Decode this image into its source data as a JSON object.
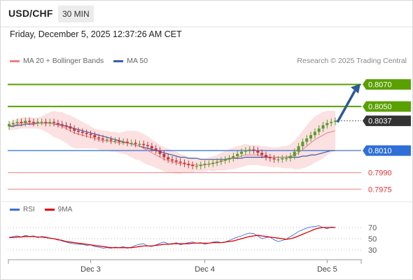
{
  "header": {
    "symbol": "USD/CHF",
    "interval": "30 MIN"
  },
  "datetime": "Friday, December 5, 2025 12:37:26 AM CET",
  "legend": {
    "ma20": {
      "label": "MA 20 + Bollinger Bands",
      "color": "#f08080"
    },
    "ma50": {
      "label": "MA 50",
      "color": "#3a5fa8"
    }
  },
  "credit": "Research © 2025 Trading Central",
  "colors": {
    "resistance": "#5aa000",
    "pivot": "#2f6fd6",
    "support": "#f08080",
    "support_text": "#e03030",
    "current_bg": "#333333",
    "candle_up": "#5a9a2a",
    "candle_down": "#c8323a",
    "band_fill": "#f8c8c8",
    "arrow": "#2d5b95",
    "rsi": "#3a6fd8",
    "rsi_ma": "#e00000"
  },
  "chart_data": {
    "type": "candlestick",
    "price_range": [
      0.7965,
      0.8085
    ],
    "levels": [
      {
        "value": 0.807,
        "label": "0.8070",
        "kind": "resistance"
      },
      {
        "value": 0.805,
        "label": "0.8050",
        "kind": "resistance"
      },
      {
        "value": 0.8037,
        "label": "0.8037",
        "kind": "current"
      },
      {
        "value": 0.801,
        "label": "0.8010",
        "kind": "pivot"
      },
      {
        "value": 0.799,
        "label": "0.7990",
        "kind": "support"
      },
      {
        "value": 0.7975,
        "label": "0.7975",
        "kind": "support"
      }
    ],
    "x_ticks": [
      {
        "index": 20,
        "label": "Dec 3"
      },
      {
        "index": 48,
        "label": "Dec 4"
      },
      {
        "index": 78,
        "label": "Dec 5"
      }
    ],
    "close": [
      0.8034,
      0.8035,
      0.8036,
      0.8035,
      0.8037,
      0.8036,
      0.8035,
      0.8036,
      0.8036,
      0.8035,
      0.8036,
      0.8035,
      0.8034,
      0.8033,
      0.8032,
      0.803,
      0.8028,
      0.8027,
      0.8026,
      0.8025,
      0.8024,
      0.8022,
      0.8021,
      0.802,
      0.802,
      0.8019,
      0.8019,
      0.8018,
      0.8018,
      0.8017,
      0.8017,
      0.8016,
      0.8016,
      0.8015,
      0.8014,
      0.8012,
      0.801,
      0.8007,
      0.8004,
      0.8002,
      0.8001,
      0.8,
      0.7999,
      0.7998,
      0.7997,
      0.7996,
      0.7996,
      0.7997,
      0.7998,
      0.7998,
      0.7999,
      0.8,
      0.8001,
      0.8002,
      0.8003,
      0.8005,
      0.8007,
      0.8009,
      0.801,
      0.8011,
      0.801,
      0.8008,
      0.8006,
      0.8004,
      0.8003,
      0.8002,
      0.8002,
      0.8003,
      0.8003,
      0.8005,
      0.8009,
      0.8014,
      0.8018,
      0.8021,
      0.8024,
      0.8027,
      0.803,
      0.8033,
      0.8035,
      0.8036,
      0.8037
    ],
    "ma20": [
      0.8032,
      0.8033,
      0.8034,
      0.8035,
      0.8035,
      0.8035,
      0.8035,
      0.8035,
      0.8035,
      0.8035,
      0.8035,
      0.8034,
      0.8033,
      0.8032,
      0.803,
      0.8028,
      0.8026,
      0.8025,
      0.8024,
      0.8023,
      0.8022,
      0.8021,
      0.802,
      0.8019,
      0.8019,
      0.8018,
      0.8018,
      0.8017,
      0.8017,
      0.8017,
      0.8016,
      0.8015,
      0.8014,
      0.8012,
      0.801,
      0.8008,
      0.8006,
      0.8004,
      0.8002,
      0.8001,
      0.8,
      0.7999,
      0.7998,
      0.7998,
      0.7997,
      0.7997,
      0.7997,
      0.7997,
      0.7997,
      0.7998,
      0.7998,
      0.7999,
      0.8,
      0.8001,
      0.8002,
      0.8003,
      0.8004,
      0.8005,
      0.8006,
      0.8006,
      0.8006,
      0.8006,
      0.8005,
      0.8005,
      0.8004,
      0.8004,
      0.8004,
      0.8004,
      0.8004,
      0.8005,
      0.8006,
      0.8008,
      0.8011,
      0.8014,
      0.8017,
      0.802,
      0.8022,
      0.8024,
      0.8026,
      0.8027,
      0.8028
    ],
    "ma50": [
      0.8032,
      0.8032,
      0.8033,
      0.8033,
      0.8034,
      0.8034,
      0.8034,
      0.8035,
      0.8035,
      0.8035,
      0.8035,
      0.8034,
      0.8034,
      0.8033,
      0.8032,
      0.8031,
      0.803,
      0.8029,
      0.8028,
      0.8027,
      0.8026,
      0.8025,
      0.8024,
      0.8023,
      0.8022,
      0.8021,
      0.802,
      0.8019,
      0.8018,
      0.8017,
      0.8016,
      0.8015,
      0.8014,
      0.8013,
      0.8012,
      0.8011,
      0.801,
      0.8009,
      0.8008,
      0.8007,
      0.8006,
      0.8005,
      0.8004,
      0.8004,
      0.8003,
      0.8003,
      0.8003,
      0.8002,
      0.8002,
      0.8002,
      0.8002,
      0.8002,
      0.8002,
      0.8002,
      0.8003,
      0.8003,
      0.8003,
      0.8003,
      0.8004,
      0.8004,
      0.8004,
      0.8004,
      0.8004,
      0.8004,
      0.8004,
      0.8004,
      0.8004,
      0.8004,
      0.8004,
      0.8004,
      0.8004,
      0.8004,
      0.8005,
      0.8005,
      0.8006,
      0.8006,
      0.8007,
      0.8008,
      0.8009,
      0.801,
      0.801
    ],
    "band_width": [
      0.0004,
      0.0004,
      0.0005,
      0.0005,
      0.0005,
      0.0005,
      0.0005,
      0.0005,
      0.0006,
      0.0008,
      0.001,
      0.0012,
      0.0012,
      0.0013,
      0.0013,
      0.0014,
      0.0014,
      0.0013,
      0.0012,
      0.0011,
      0.001,
      0.0009,
      0.0009,
      0.0009,
      0.0009,
      0.0009,
      0.0009,
      0.0009,
      0.001,
      0.0011,
      0.0012,
      0.0013,
      0.0013,
      0.0013,
      0.0013,
      0.0012,
      0.0012,
      0.0011,
      0.0011,
      0.0011,
      0.001,
      0.001,
      0.0009,
      0.0008,
      0.0007,
      0.0007,
      0.0006,
      0.0006,
      0.0006,
      0.0006,
      0.0007,
      0.0007,
      0.0008,
      0.0009,
      0.0009,
      0.001,
      0.001,
      0.001,
      0.001,
      0.0009,
      0.0009,
      0.0009,
      0.0009,
      0.0009,
      0.0009,
      0.0009,
      0.0009,
      0.001,
      0.001,
      0.0011,
      0.0013,
      0.0015,
      0.0017,
      0.0019,
      0.002,
      0.0021,
      0.0021,
      0.0021,
      0.002,
      0.0019,
      0.0018
    ],
    "projection": {
      "from": 0.8037,
      "to": 0.807
    },
    "rsi": {
      "legend": [
        {
          "label": "RSI",
          "color": "#3a6fd8"
        },
        {
          "label": "9MA",
          "color": "#e00000"
        }
      ],
      "ticks": [
        "70",
        "50",
        "30"
      ],
      "range": [
        20,
        80
      ],
      "values": [
        52,
        54,
        55,
        53,
        56,
        54,
        55,
        52,
        54,
        53,
        51,
        50,
        49,
        46,
        44,
        42,
        41,
        40,
        40,
        38,
        39,
        36,
        35,
        33,
        34,
        33,
        35,
        34,
        36,
        33,
        35,
        38,
        40,
        41,
        37,
        36,
        39,
        42,
        44,
        41,
        40,
        43,
        39,
        41,
        43,
        44,
        42,
        43,
        40,
        42,
        44,
        45,
        43,
        44,
        47,
        50,
        53,
        55,
        58,
        60,
        59,
        55,
        50,
        52,
        53,
        48,
        45,
        47,
        49,
        54,
        58,
        63,
        66,
        69,
        71,
        72,
        73,
        70,
        68,
        71,
        70
      ],
      "ma": [
        52,
        52,
        53,
        53,
        54,
        54,
        54,
        53,
        53,
        52,
        51,
        50,
        48,
        47,
        45,
        44,
        43,
        42,
        41,
        40,
        39,
        38,
        37,
        36,
        35,
        34,
        34,
        34,
        34,
        34,
        34,
        35,
        36,
        37,
        37,
        37,
        38,
        39,
        40,
        40,
        41,
        41,
        41,
        41,
        41,
        42,
        42,
        42,
        42,
        42,
        43,
        43,
        43,
        44,
        45,
        46,
        48,
        50,
        52,
        54,
        55,
        56,
        55,
        54,
        53,
        52,
        51,
        50,
        49,
        50,
        52,
        55,
        58,
        61,
        64,
        67,
        69,
        70,
        70,
        70,
        70
      ]
    }
  }
}
